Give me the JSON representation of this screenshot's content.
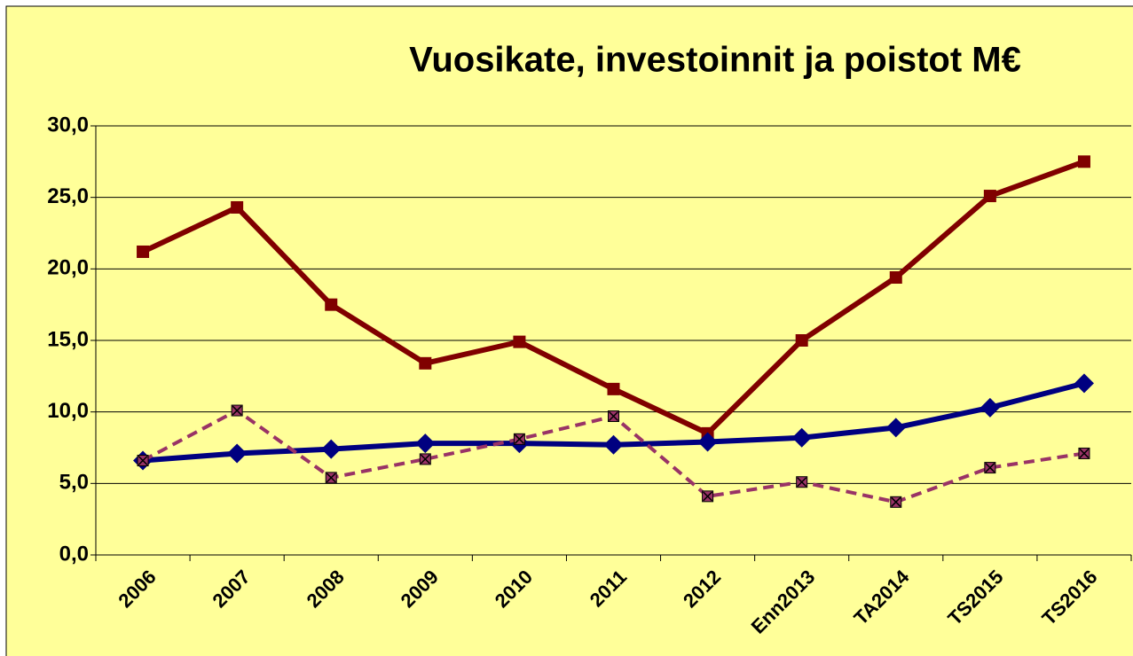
{
  "chart_data": {
    "type": "line",
    "title": "Vuosikate, investoinnit ja poistot M€",
    "categories": [
      "2006",
      "2007",
      "2008",
      "2009",
      "2010",
      "2011",
      "2012",
      "Enn2013",
      "TA2014",
      "TS2015",
      "TS2016"
    ],
    "series": [
      {
        "color": "#800000",
        "marker": "square",
        "dash": false,
        "width": 6,
        "values": [
          21.2,
          24.3,
          17.5,
          13.4,
          14.9,
          11.6,
          8.5,
          15.0,
          19.4,
          25.1,
          27.5
        ]
      },
      {
        "color": "#000080",
        "marker": "diamond",
        "dash": false,
        "width": 6,
        "values": [
          6.6,
          7.1,
          7.4,
          7.8,
          7.8,
          7.7,
          7.9,
          8.2,
          8.9,
          10.3,
          12.0
        ]
      },
      {
        "color": "#993366",
        "marker": "crossed-square",
        "dash": true,
        "width": 4,
        "values": [
          6.6,
          10.1,
          5.4,
          6.7,
          8.1,
          9.7,
          4.1,
          5.1,
          3.7,
          6.1,
          7.1
        ]
      }
    ],
    "ylim": [
      0,
      30
    ],
    "yticks": [
      {
        "value": 0,
        "label": "0,0"
      },
      {
        "value": 5,
        "label": "5,0"
      },
      {
        "value": 10,
        "label": "10,0"
      },
      {
        "value": 15,
        "label": "15,0"
      },
      {
        "value": 20,
        "label": "20,0"
      },
      {
        "value": 25,
        "label": "25,0"
      },
      {
        "value": 30,
        "label": "30,0"
      }
    ],
    "grid": true,
    "background": "#FFFF99"
  }
}
